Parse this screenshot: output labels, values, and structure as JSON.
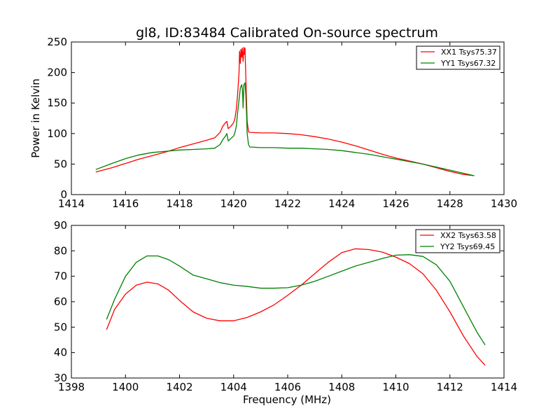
{
  "chart_data": [
    {
      "type": "line",
      "title": "gl8, ID:83484 Calibrated On-source spectrum",
      "xlabel": "",
      "ylabel": "Power in Kelvin",
      "xlim": [
        1414,
        1430
      ],
      "ylim": [
        0,
        250
      ],
      "xticks": [
        "1414",
        "1416",
        "1418",
        "1420",
        "1422",
        "1424",
        "1426",
        "1428",
        "1430"
      ],
      "yticks": [
        "0",
        "50",
        "100",
        "150",
        "200",
        "250"
      ],
      "grid": false,
      "legend_position": "top-right",
      "series": [
        {
          "name": "XX1 Tsys75.37",
          "color": "#ff0000",
          "x": [
            14.9,
            15.5,
            16.0,
            16.5,
            17.0,
            17.5,
            18.0,
            18.5,
            19.0,
            19.3,
            19.5,
            19.6,
            19.7,
            19.75,
            19.8,
            19.9,
            20.0,
            20.05,
            20.1,
            20.15,
            20.2,
            20.22,
            20.25,
            20.27,
            20.3,
            20.32,
            20.35,
            20.38,
            20.4,
            20.42,
            20.45,
            20.48,
            20.5,
            20.55,
            20.6,
            21.0,
            21.5,
            22.0,
            22.5,
            23.0,
            23.5,
            24.0,
            24.5,
            25.0,
            25.5,
            26.0,
            26.5,
            27.0,
            27.5,
            28.0,
            28.5,
            28.9
          ],
          "y": [
            37,
            44,
            51,
            58,
            64,
            70,
            77,
            83,
            89,
            93,
            102,
            112,
            118,
            120,
            108,
            112,
            118,
            125,
            140,
            165,
            200,
            235,
            215,
            238,
            225,
            240,
            218,
            241,
            230,
            240,
            195,
            150,
            120,
            103,
            102,
            101,
            101,
            100,
            98,
            95,
            91,
            86,
            80,
            73,
            66,
            60,
            55,
            50,
            44,
            38,
            33,
            31
          ]
        },
        {
          "name": "YY1 Tsys67.32",
          "color": "#008000",
          "x": [
            14.9,
            15.5,
            16.0,
            16.5,
            17.0,
            17.5,
            18.0,
            18.5,
            19.0,
            19.3,
            19.5,
            19.6,
            19.7,
            19.75,
            19.8,
            19.9,
            20.0,
            20.05,
            20.1,
            20.15,
            20.2,
            20.25,
            20.3,
            20.33,
            20.35,
            20.38,
            20.42,
            20.45,
            20.48,
            20.5,
            20.55,
            20.6,
            21.0,
            21.5,
            22.0,
            22.5,
            23.0,
            23.5,
            24.0,
            24.5,
            25.0,
            25.5,
            26.0,
            26.5,
            27.0,
            27.5,
            28.0,
            28.5,
            28.9
          ],
          "y": [
            41,
            51,
            59,
            65,
            69,
            71,
            73,
            74,
            75,
            76,
            82,
            90,
            96,
            100,
            88,
            92,
            96,
            102,
            112,
            135,
            155,
            175,
            180,
            170,
            142,
            180,
            183,
            165,
            130,
            100,
            82,
            78,
            77,
            77,
            76,
            76,
            75,
            74,
            72,
            69,
            66,
            62,
            58,
            54,
            50,
            45,
            40,
            35,
            31
          ]
        }
      ]
    },
    {
      "type": "line",
      "title": "",
      "xlabel": "Frequency (MHz)",
      "ylabel": "",
      "xlim": [
        1398,
        1414
      ],
      "ylim": [
        30,
        90
      ],
      "xticks": [
        "1398",
        "1400",
        "1402",
        "1404",
        "1406",
        "1408",
        "1410",
        "1412",
        "1414"
      ],
      "yticks": [
        "30",
        "40",
        "50",
        "60",
        "70",
        "80",
        "90"
      ],
      "grid": false,
      "legend_position": "top-right",
      "series": [
        {
          "name": "XX2 Tsys63.58",
          "color": "#ff0000",
          "x": [
            1399.3,
            1399.6,
            1400.0,
            1400.4,
            1400.8,
            1401.2,
            1401.6,
            1402.0,
            1402.5,
            1403.0,
            1403.5,
            1404.0,
            1404.5,
            1405.0,
            1405.5,
            1406.0,
            1406.5,
            1407.0,
            1407.5,
            1408.0,
            1408.5,
            1409.0,
            1409.5,
            1410.0,
            1410.5,
            1411.0,
            1411.5,
            1412.0,
            1412.5,
            1413.0,
            1413.3
          ],
          "y": [
            49,
            57,
            63,
            66.5,
            67.7,
            67.0,
            64.5,
            60.5,
            56.0,
            53.5,
            52.5,
            52.5,
            53.8,
            56.0,
            58.8,
            62.5,
            66.5,
            71.0,
            75.5,
            79.3,
            80.8,
            80.5,
            79.5,
            77.5,
            75.0,
            71.0,
            64.5,
            56.0,
            46.5,
            38.5,
            35.0
          ]
        },
        {
          "name": "YY2 Tsys69.45",
          "color": "#008000",
          "x": [
            1399.3,
            1399.6,
            1400.0,
            1400.4,
            1400.8,
            1401.2,
            1401.6,
            1402.0,
            1402.5,
            1403.0,
            1403.5,
            1404.0,
            1404.5,
            1405.0,
            1405.5,
            1406.0,
            1406.5,
            1407.0,
            1407.5,
            1408.0,
            1408.5,
            1409.0,
            1409.5,
            1410.0,
            1410.5,
            1411.0,
            1411.5,
            1412.0,
            1412.5,
            1413.0,
            1413.3
          ],
          "y": [
            53,
            61,
            70,
            75.5,
            78.0,
            78.0,
            76.5,
            74.0,
            70.5,
            69.0,
            67.5,
            66.5,
            66.0,
            65.3,
            65.3,
            65.5,
            66.5,
            68.0,
            70.0,
            72.0,
            74.0,
            75.5,
            77.0,
            78.3,
            78.5,
            77.8,
            74.5,
            68.0,
            58.0,
            48.0,
            43.0
          ]
        }
      ]
    }
  ]
}
